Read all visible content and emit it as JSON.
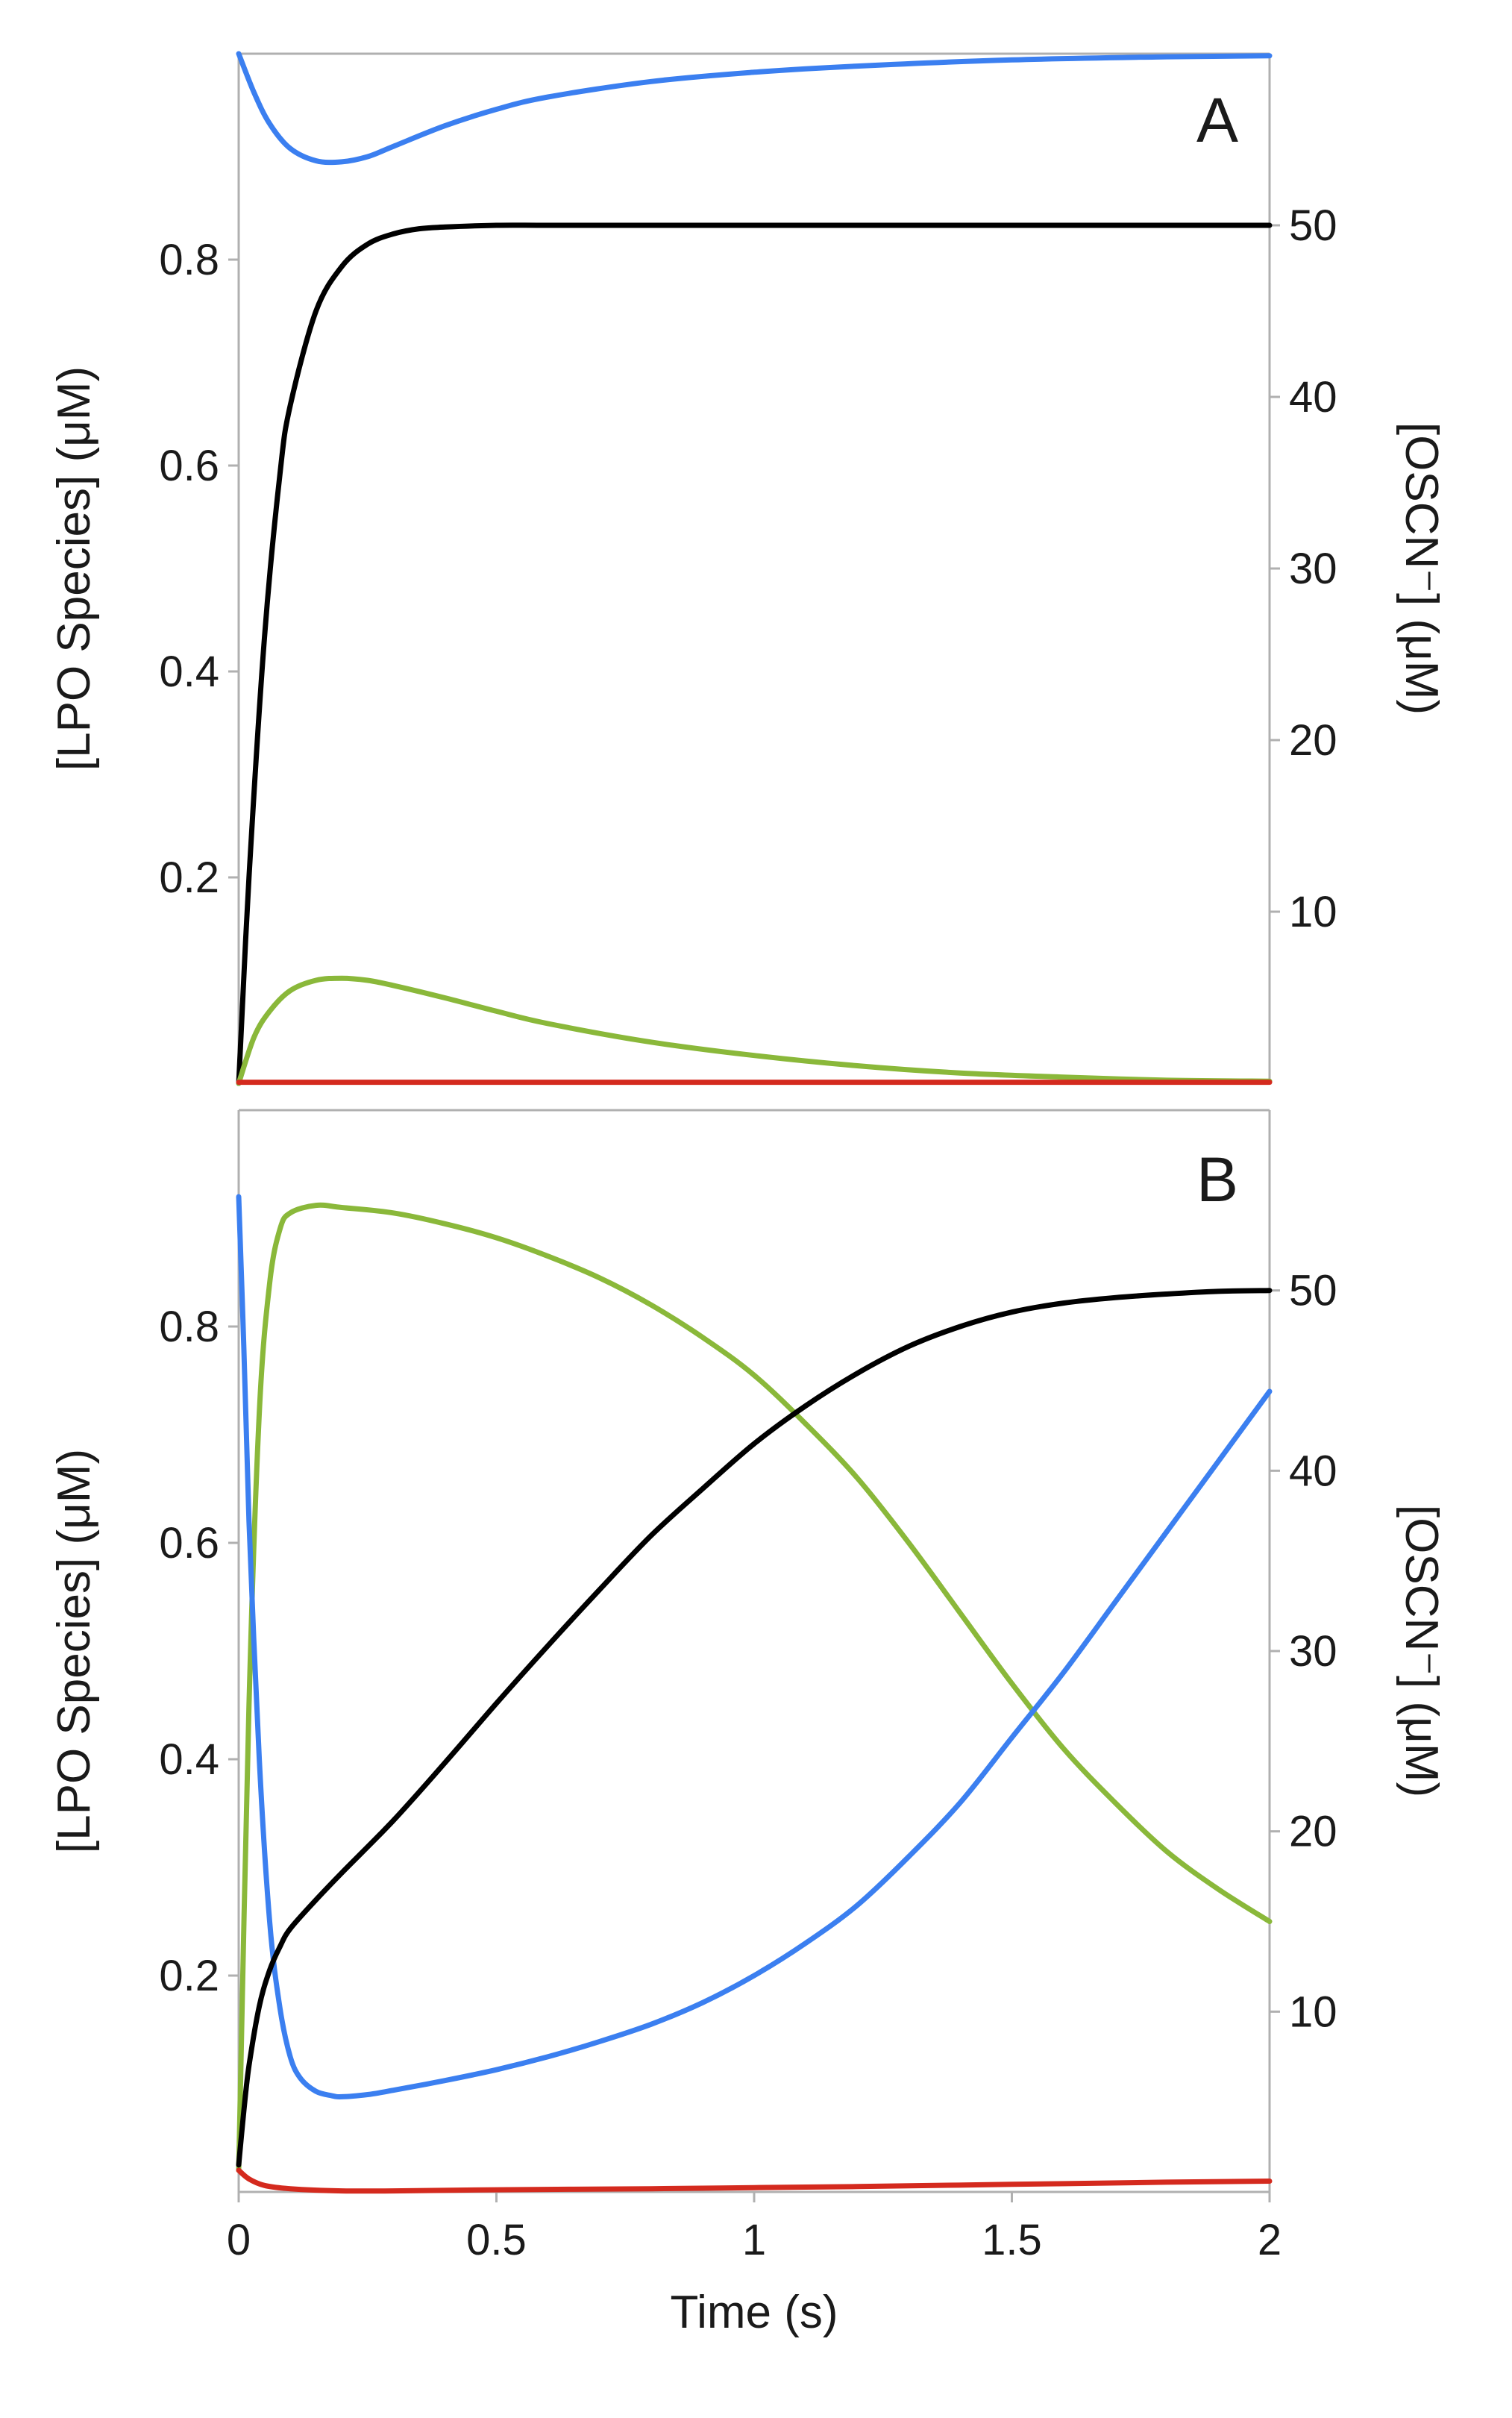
{
  "chart_data": [
    {
      "type": "line",
      "panel_label": "A",
      "xlabel": "",
      "ylabel": "[LPO Species] (μM)",
      "y2label": "[OSCN⁻] (μM)",
      "xlim": [
        0,
        2
      ],
      "ylim": [
        0,
        1.0
      ],
      "y2lim": [
        0,
        60
      ],
      "yticks": [
        0.2,
        0.4,
        0.6,
        0.8
      ],
      "ytick_labels": [
        "0.2",
        "0.4",
        "0.6",
        "0.8"
      ],
      "y2ticks": [
        10,
        20,
        30,
        40,
        50
      ],
      "y2tick_labels": [
        "10",
        "20",
        "30",
        "40",
        "50"
      ],
      "series": [
        {
          "name": "blue",
          "color": "#3b7ff0",
          "axis": "left",
          "x": [
            0,
            0.03,
            0.06,
            0.1,
            0.15,
            0.2,
            0.25,
            0.3,
            0.4,
            0.5,
            0.6,
            0.8,
            1.0,
            1.2,
            1.5,
            1.8,
            2.0
          ],
          "y": [
            1.0,
            0.962,
            0.932,
            0.908,
            0.896,
            0.895,
            0.9,
            0.91,
            0.93,
            0.946,
            0.958,
            0.973,
            0.982,
            0.988,
            0.994,
            0.997,
            0.998
          ]
        },
        {
          "name": "black",
          "color": "#000000",
          "axis": "right",
          "x": [
            0,
            0.02,
            0.05,
            0.08,
            0.1,
            0.15,
            0.2,
            0.25,
            0.3,
            0.35,
            0.4,
            0.5,
            0.6,
            0.8,
            1.0,
            1.5,
            2.0
          ],
          "y": [
            0,
            12.0,
            26.0,
            35.5,
            39.5,
            45.0,
            47.6,
            48.9,
            49.5,
            49.8,
            49.9,
            50.0,
            50.0,
            50.0,
            50.0,
            50.0,
            50.0
          ]
        },
        {
          "name": "green",
          "color": "#8ab83a",
          "axis": "left",
          "x": [
            0,
            0.03,
            0.06,
            0.1,
            0.15,
            0.2,
            0.25,
            0.3,
            0.4,
            0.5,
            0.6,
            0.8,
            1.0,
            1.2,
            1.4,
            1.6,
            1.8,
            2.0
          ],
          "y": [
            0,
            0.045,
            0.07,
            0.09,
            0.1,
            0.102,
            0.1,
            0.095,
            0.083,
            0.07,
            0.058,
            0.04,
            0.027,
            0.017,
            0.01,
            0.006,
            0.003,
            0.002
          ]
        },
        {
          "name": "red",
          "color": "#d42a1e",
          "axis": "left",
          "x": [
            0,
            0.5,
            1.0,
            1.5,
            2.0
          ],
          "y": [
            0.001,
            0.001,
            0.001,
            0.001,
            0.001
          ]
        }
      ]
    },
    {
      "type": "line",
      "panel_label": "B",
      "xlabel": "Time (s)",
      "ylabel": "[LPO Species] (μM)",
      "y2label": "[OSCN⁻] (μM)",
      "xlim": [
        0,
        2
      ],
      "ylim": [
        0,
        1.0
      ],
      "y2lim": [
        0,
        60
      ],
      "xticks": [
        0,
        0.5,
        1,
        1.5,
        2
      ],
      "xtick_labels": [
        "0",
        "0.5",
        "1",
        "1.5",
        "2"
      ],
      "yticks": [
        0.2,
        0.4,
        0.6,
        0.8
      ],
      "ytick_labels": [
        "0.2",
        "0.4",
        "0.6",
        "0.8"
      ],
      "y2ticks": [
        10,
        20,
        30,
        40,
        50
      ],
      "y2tick_labels": [
        "10",
        "20",
        "30",
        "40",
        "50"
      ],
      "series": [
        {
          "name": "green",
          "color": "#8ab83a",
          "axis": "left",
          "x": [
            0,
            0.02,
            0.04,
            0.06,
            0.08,
            0.1,
            0.15,
            0.2,
            0.3,
            0.4,
            0.5,
            0.6,
            0.7,
            0.8,
            0.9,
            1.0,
            1.1,
            1.2,
            1.3,
            1.4,
            1.5,
            1.6,
            1.7,
            1.8,
            1.9,
            2.0
          ],
          "y": [
            0.02,
            0.45,
            0.72,
            0.84,
            0.89,
            0.905,
            0.912,
            0.91,
            0.905,
            0.895,
            0.882,
            0.865,
            0.845,
            0.82,
            0.79,
            0.755,
            0.71,
            0.66,
            0.6,
            0.535,
            0.47,
            0.41,
            0.36,
            0.315,
            0.28,
            0.25
          ]
        },
        {
          "name": "blue",
          "color": "#3b7ff0",
          "axis": "left",
          "x": [
            0,
            0.01,
            0.02,
            0.04,
            0.06,
            0.08,
            0.1,
            0.12,
            0.15,
            0.18,
            0.2,
            0.25,
            0.3,
            0.4,
            0.5,
            0.6,
            0.7,
            0.8,
            0.9,
            1.0,
            1.1,
            1.2,
            1.3,
            1.4,
            1.5,
            1.6,
            1.7,
            1.8,
            1.9,
            2.0
          ],
          "y": [
            0.92,
            0.78,
            0.62,
            0.4,
            0.25,
            0.17,
            0.125,
            0.105,
            0.093,
            0.089,
            0.088,
            0.09,
            0.094,
            0.103,
            0.113,
            0.125,
            0.139,
            0.155,
            0.175,
            0.2,
            0.23,
            0.265,
            0.31,
            0.36,
            0.42,
            0.48,
            0.545,
            0.61,
            0.675,
            0.74
          ]
        },
        {
          "name": "black",
          "color": "#000000",
          "axis": "right",
          "x": [
            0,
            0.01,
            0.02,
            0.04,
            0.06,
            0.08,
            0.1,
            0.15,
            0.2,
            0.3,
            0.4,
            0.5,
            0.6,
            0.7,
            0.8,
            0.9,
            1.0,
            1.1,
            1.2,
            1.3,
            1.4,
            1.5,
            1.6,
            1.7,
            1.8,
            1.9,
            2.0
          ],
          "y": [
            1.5,
            4.5,
            7.0,
            10.3,
            12.3,
            13.6,
            14.6,
            16.2,
            17.7,
            20.6,
            23.8,
            27.1,
            30.3,
            33.4,
            36.4,
            39.0,
            41.5,
            43.6,
            45.4,
            46.9,
            48.0,
            48.8,
            49.3,
            49.6,
            49.8,
            49.95,
            50.0
          ]
        },
        {
          "name": "red",
          "color": "#d42a1e",
          "axis": "left",
          "x": [
            0,
            0.02,
            0.05,
            0.1,
            0.2,
            0.3,
            0.5,
            0.8,
            1.0,
            1.2,
            1.5,
            1.8,
            2.0
          ],
          "y": [
            0.02,
            0.012,
            0.006,
            0.003,
            0.001,
            0.001,
            0.002,
            0.003,
            0.004,
            0.005,
            0.007,
            0.009,
            0.01
          ]
        }
      ]
    }
  ]
}
